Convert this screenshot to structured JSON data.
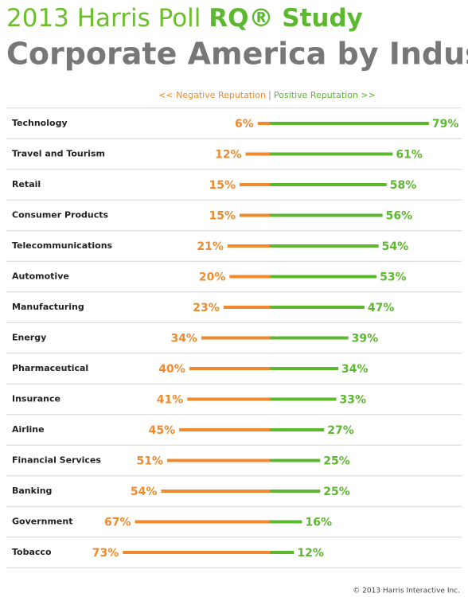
{
  "chart_data": {
    "type": "diverging_bar",
    "title": [
      "2013 Harris Poll",
      "RQ® Study"
    ],
    "subtitle": "Corporate America by Industry",
    "categories": [
      "Technology",
      "Travel and Tourism",
      "Retail",
      "Consumer Products",
      "Telecommunications",
      "Automotive",
      "Manufacturing",
      "Energy",
      "Pharmaceutical",
      "Insurance",
      "Airline",
      "Financial Services",
      "Banking",
      "Government",
      "Tobacco"
    ],
    "series": [
      {
        "name": "<< Negative Reputation",
        "color": "#f08a2c",
        "direction": "left",
        "values": [
          6,
          12,
          15,
          15,
          21,
          20,
          23,
          34,
          40,
          41,
          45,
          51,
          54,
          67,
          73
        ],
        "value_labels": [
          "6%",
          "12%",
          "15%",
          "15%",
          "21%",
          "20%",
          "23%",
          "34%",
          "40%",
          "41%",
          "45%",
          "51%",
          "54%",
          "67%",
          "73%"
        ]
      },
      {
        "name": "Positive Reputation >>",
        "color": "#5cb82e",
        "direction": "right",
        "values": [
          79,
          61,
          58,
          56,
          54,
          53,
          47,
          39,
          34,
          33,
          27,
          25,
          25,
          16,
          12
        ],
        "value_labels": [
          "79%",
          "61%",
          "58%",
          "56%",
          "54%",
          "53%",
          "47%",
          "39%",
          "34%",
          "33%",
          "27%",
          "25%",
          "25%",
          "16%",
          "12%"
        ]
      }
    ],
    "source": "© 2013 Harris Interactive Inc."
  }
}
